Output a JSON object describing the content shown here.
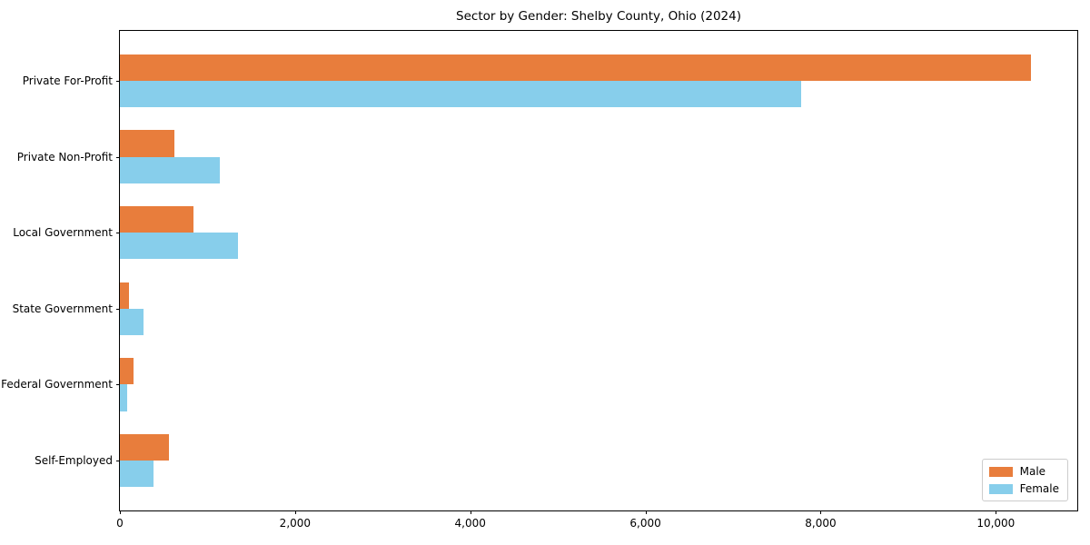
{
  "figure": {
    "title": "Sector by Gender: Shelby County, Ohio (2024)"
  },
  "chart_data": {
    "type": "bar",
    "orientation": "horizontal",
    "title": "Sector by Gender: Shelby County, Ohio (2024)",
    "categories": [
      "Private For-Profit",
      "Private Non-Profit",
      "Local Government",
      "State Government",
      "Federal Government",
      "Self-Employed"
    ],
    "series": [
      {
        "name": "Male",
        "color": "#e87d3c",
        "values": [
          10400,
          625,
          845,
          105,
          155,
          565
        ]
      },
      {
        "name": "Female",
        "color": "#87ceeb",
        "values": [
          7780,
          1140,
          1350,
          270,
          85,
          380
        ]
      }
    ],
    "xlabel": "",
    "ylabel": "",
    "xlim": [
      0,
      10930
    ],
    "xticks": [
      0,
      2000,
      4000,
      6000,
      8000,
      10000
    ],
    "xtick_labels": [
      "0",
      "2,000",
      "4,000",
      "6,000",
      "8,000",
      "10,000"
    ],
    "legend_position": "lower right",
    "grid": false,
    "bar_group_height_units": 0.35
  }
}
